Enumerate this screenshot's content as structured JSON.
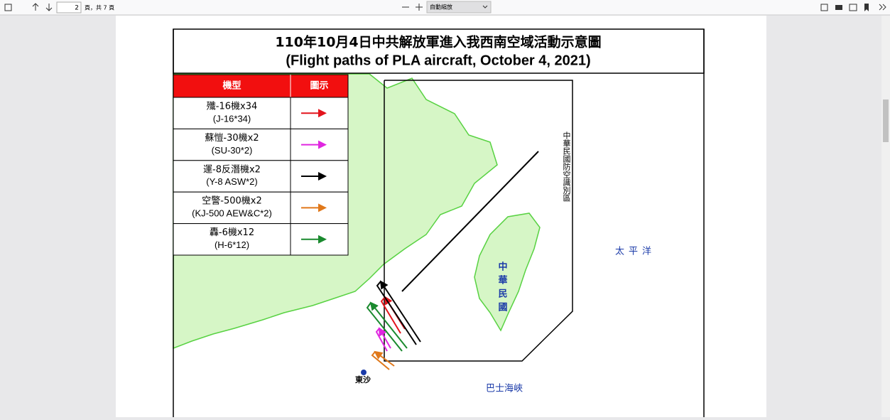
{
  "toolbar": {
    "page_number": "2",
    "page_count_text": "頁，共 7 頁",
    "zoom": "自動縮放"
  },
  "document": {
    "title_zh": "110年10月4日中共解放軍進入我西南空域活動示意圖",
    "title_en": "(Flight paths of PLA aircraft, October 4, 2021)",
    "legend": {
      "header": [
        "機型",
        "圖示"
      ],
      "rows": [
        {
          "name_zh": "殲-16機x34",
          "name_en": "(J-16*34)",
          "color": "#e3141c"
        },
        {
          "name_zh": "蘇愷-30機x2",
          "name_en": "(SU-30*2)",
          "color": "#e026e0"
        },
        {
          "name_zh": "運-8反潛機x2",
          "name_en": "(Y-8 ASW*2)",
          "color": "#000000"
        },
        {
          "name_zh": "空警-500機x2",
          "name_en": "(KJ-500 AEW&C*2)",
          "color": "#e0781a"
        },
        {
          "name_zh": "轟-6機x12",
          "name_en": "(H-6*12)",
          "color": "#1a8a2e"
        }
      ]
    },
    "map_labels": {
      "adiz": "中華民國防空識別區",
      "taiwan": "中華民國",
      "pacific": "太平洋",
      "bashi": "巴士海峽",
      "dongsha": "東沙"
    }
  }
}
